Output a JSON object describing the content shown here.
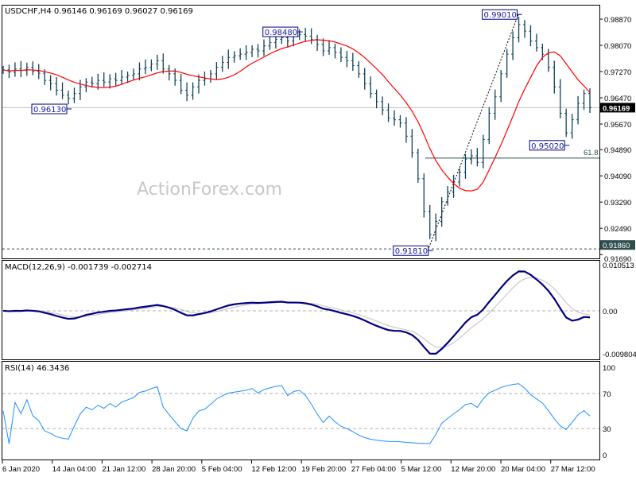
{
  "chart_data": {
    "type": "ohlc",
    "symbol_header": "USDCHF,H4  0.96146 0.96169 0.96027 0.96169",
    "watermark": "ActionForex.com",
    "price_axis": {
      "ticks": [
        "0.98870",
        "0.98070",
        "0.97270",
        "0.96470",
        "0.95670",
        "0.94890",
        "0.94090",
        "0.93290",
        "0.92490",
        "0.91690"
      ],
      "ylim": [
        0.9169,
        0.9913
      ],
      "current_price": "0.96169",
      "marked_level": "0.91860"
    },
    "time_axis": [
      "6 Jan 2020",
      "14 Jan 04:00",
      "21 Jan 12:00",
      "28 Jan 20:00",
      "5 Feb 04:00",
      "12 Feb 12:00",
      "19 Feb 20:00",
      "27 Feb 04:00",
      "5 Mar 12:00",
      "12 Mar 20:00",
      "20 Mar 04:00",
      "27 Mar 12:00"
    ],
    "closes": [
      0.9732,
      0.9725,
      0.9735,
      0.973,
      0.974,
      0.9728,
      0.9722,
      0.97,
      0.969,
      0.967,
      0.9655,
      0.9645,
      0.966,
      0.968,
      0.9695,
      0.969,
      0.97,
      0.9695,
      0.9705,
      0.97,
      0.971,
      0.9715,
      0.972,
      0.9735,
      0.974,
      0.975,
      0.976,
      0.9735,
      0.972,
      0.97,
      0.967,
      0.9655,
      0.968,
      0.97,
      0.9705,
      0.972,
      0.974,
      0.9755,
      0.977,
      0.9775,
      0.978,
      0.9785,
      0.9795,
      0.979,
      0.9805,
      0.9815,
      0.9825,
      0.983,
      0.982,
      0.9835,
      0.984,
      0.9835,
      0.9825,
      0.981,
      0.979,
      0.98,
      0.9785,
      0.977,
      0.976,
      0.9745,
      0.972,
      0.969,
      0.966,
      0.9635,
      0.961,
      0.9585,
      0.958,
      0.957,
      0.953,
      0.948,
      0.94,
      0.93,
      0.923,
      0.927,
      0.933,
      0.936,
      0.939,
      0.942,
      0.946,
      0.947,
      0.945,
      0.952,
      0.96,
      0.965,
      0.972,
      0.978,
      0.983,
      0.987,
      0.985,
      0.982,
      0.98,
      0.978,
      0.974,
      0.968,
      0.96,
      0.954,
      0.958,
      0.963,
      0.966,
      0.9617
    ],
    "annotations": [
      {
        "text": "0.96130",
        "price": 0.9613,
        "bar": 11
      },
      {
        "text": "0.98480",
        "price": 0.9848,
        "bar": 50
      },
      {
        "text": "0.99010",
        "price": 0.9901,
        "bar": 87
      },
      {
        "text": "0.95020",
        "price": 0.9502,
        "bar": 95
      },
      {
        "text": "0.91810",
        "price": 0.9181,
        "bar": 72
      }
    ],
    "fib_level": {
      "label": "61.8",
      "price": 0.9463
    },
    "colors": {
      "bars": "#12415a",
      "ma": "#ff0000",
      "macd": "#000080",
      "signal": "#c0c0c0",
      "rsi": "#1e90ff",
      "price_tag_bg": "#000000",
      "level_tag_bg": "#2f4f4f"
    },
    "macd": {
      "title": "MACD(12,26,9) -0.001739 -0.002714",
      "ticks": [
        "0.010513",
        "0.00",
        "-0.009804"
      ],
      "ylim": [
        -0.009804,
        0.010513
      ]
    },
    "rsi": {
      "title": "RSI(14) 46.3436",
      "ticks": [
        "100",
        "70",
        "30",
        "0"
      ],
      "levels": [
        70,
        30
      ],
      "ylim": [
        0,
        100
      ]
    }
  }
}
